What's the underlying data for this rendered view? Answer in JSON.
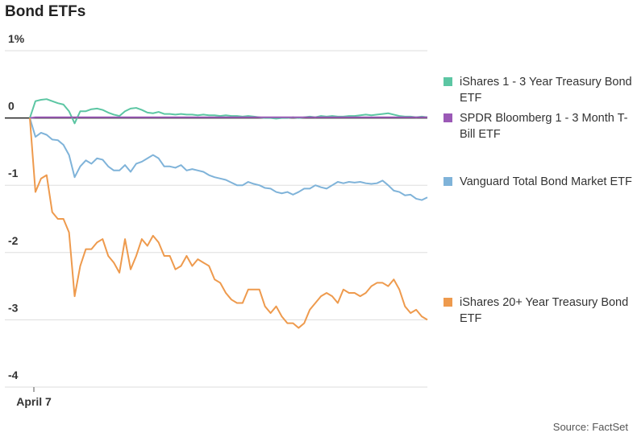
{
  "chart_data": {
    "type": "line",
    "title": "Bond ETFs",
    "source": "Source: FactSet",
    "categories": [
      "April 7",
      null,
      null,
      null,
      null,
      null,
      null,
      null,
      null,
      null,
      null,
      null,
      null,
      null,
      null,
      null,
      null,
      null,
      null,
      null,
      null,
      null,
      null,
      null,
      null,
      null,
      null,
      null,
      null,
      null,
      null,
      null,
      null,
      null,
      null,
      null,
      null,
      null,
      null,
      null,
      null,
      null,
      null,
      null,
      null,
      null,
      null,
      null,
      null,
      null,
      null,
      null,
      null,
      null,
      null,
      null,
      null,
      null,
      null,
      null,
      null,
      null,
      null,
      null,
      null,
      null,
      null,
      null,
      null,
      null,
      null,
      null
    ],
    "ylim": [
      -4,
      1
    ],
    "yticks": [
      {
        "value": 1,
        "label": "1%"
      },
      0,
      -1,
      -2,
      -3,
      -4
    ],
    "grid": true,
    "series": [
      {
        "name": "iShares 1 - 3 Year Treasury Bond ETF",
        "color": "#5cc6a3",
        "values": [
          0,
          0.25,
          0.27,
          0.28,
          0.25,
          0.22,
          0.2,
          0.1,
          -0.08,
          0.1,
          0.1,
          0.13,
          0.14,
          0.12,
          0.08,
          0.05,
          0.03,
          0.1,
          0.14,
          0.15,
          0.12,
          0.08,
          0.07,
          0.09,
          0.06,
          0.06,
          0.05,
          0.06,
          0.05,
          0.05,
          0.04,
          0.05,
          0.04,
          0.04,
          0.03,
          0.04,
          0.03,
          0.03,
          0.02,
          0.03,
          0.02,
          0.01,
          0,
          0,
          -0.01,
          0,
          0,
          0.01,
          0,
          0.01,
          0.02,
          0.01,
          0.03,
          0.02,
          0.03,
          0.02,
          0.02,
          0.03,
          0.03,
          0.04,
          0.05,
          0.04,
          0.05,
          0.06,
          0.07,
          0.05,
          0.03,
          0.02,
          0.02,
          0.01,
          0.02,
          0.01
        ]
      },
      {
        "name": "SPDR Bloomberg 1 - 3 Month T-Bill ETF",
        "color": "#9b59b6",
        "values": [
          0,
          0.01,
          0.01,
          0.01,
          0.01,
          0.01,
          0.01,
          0.01,
          0.01,
          0.01,
          0.01,
          0.01,
          0.01,
          0.01,
          0.01,
          0.01,
          0.01,
          0.01,
          0.01,
          0.01,
          0.01,
          0.01,
          0.01,
          0.01,
          0.01,
          0.01,
          0.01,
          0.01,
          0.01,
          0.01,
          0.01,
          0.01,
          0.01,
          0.01,
          0.01,
          0.01,
          0.01,
          0.01,
          0.01,
          0.01,
          0.01,
          0.01,
          0.01,
          0.01,
          0.01,
          0.01,
          0.01,
          0.01,
          0.01,
          0.01,
          0.01,
          0.01,
          0.01,
          0.01,
          0.01,
          0.01,
          0.01,
          0.01,
          0.01,
          0.01,
          0.01,
          0.01,
          0.01,
          0.01,
          0.01,
          0.01,
          0.01,
          0.01,
          0.01,
          0.01,
          0.01,
          0.01
        ]
      },
      {
        "name": "Vanguard Total Bond Market ETF",
        "color": "#7fb3d9",
        "values": [
          0,
          -0.28,
          -0.22,
          -0.25,
          -0.32,
          -0.33,
          -0.4,
          -0.55,
          -0.88,
          -0.72,
          -0.63,
          -0.68,
          -0.6,
          -0.62,
          -0.72,
          -0.78,
          -0.78,
          -0.7,
          -0.8,
          -0.68,
          -0.65,
          -0.6,
          -0.55,
          -0.6,
          -0.72,
          -0.72,
          -0.74,
          -0.7,
          -0.78,
          -0.76,
          -0.78,
          -0.8,
          -0.85,
          -0.88,
          -0.9,
          -0.92,
          -0.96,
          -1.0,
          -1.0,
          -0.95,
          -0.98,
          -1.0,
          -1.04,
          -1.05,
          -1.1,
          -1.12,
          -1.1,
          -1.14,
          -1.1,
          -1.05,
          -1.05,
          -1.0,
          -1.03,
          -1.05,
          -1.0,
          -0.95,
          -0.97,
          -0.95,
          -0.96,
          -0.95,
          -0.97,
          -0.98,
          -0.97,
          -0.93,
          -1.0,
          -1.08,
          -1.1,
          -1.15,
          -1.14,
          -1.2,
          -1.22,
          -1.18
        ]
      },
      {
        "name": "iShares 20+ Year Treasury Bond ETF",
        "color": "#ee9a4d",
        "values": [
          0,
          -1.1,
          -0.9,
          -0.85,
          -1.4,
          -1.5,
          -1.5,
          -1.7,
          -2.65,
          -2.2,
          -1.95,
          -1.95,
          -1.85,
          -1.8,
          -2.05,
          -2.15,
          -2.3,
          -1.8,
          -2.25,
          -2.05,
          -1.8,
          -1.9,
          -1.75,
          -1.85,
          -2.05,
          -2.05,
          -2.25,
          -2.2,
          -2.05,
          -2.2,
          -2.1,
          -2.15,
          -2.2,
          -2.4,
          -2.45,
          -2.6,
          -2.7,
          -2.75,
          -2.75,
          -2.55,
          -2.55,
          -2.55,
          -2.8,
          -2.9,
          -2.8,
          -2.95,
          -3.05,
          -3.05,
          -3.12,
          -3.05,
          -2.85,
          -2.75,
          -2.65,
          -2.6,
          -2.65,
          -2.75,
          -2.55,
          -2.6,
          -2.6,
          -2.65,
          -2.6,
          -2.5,
          -2.45,
          -2.45,
          -2.5,
          -2.4,
          -2.55,
          -2.8,
          -2.9,
          -2.85,
          -2.95,
          -3.0
        ]
      }
    ]
  }
}
